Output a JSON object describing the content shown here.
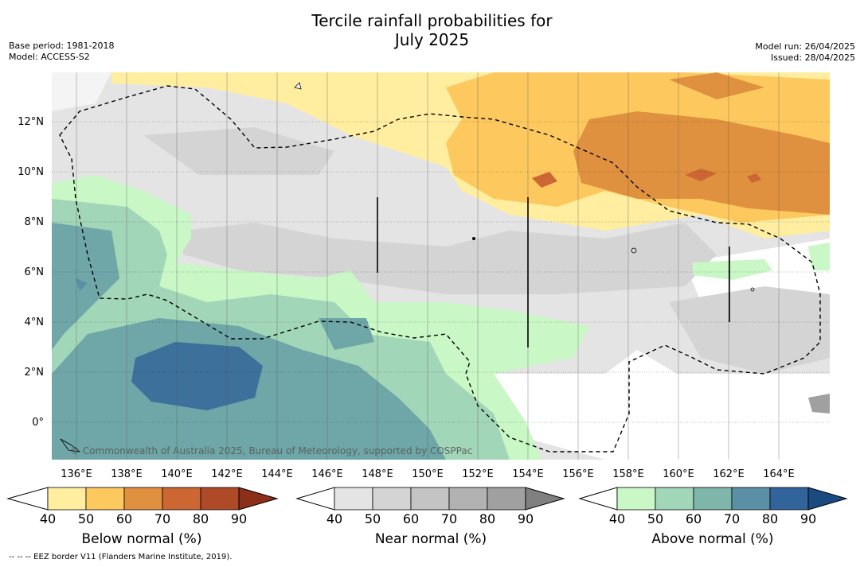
{
  "title_line1": "Tercile rainfall probabilities for",
  "title_line2": "July 2025",
  "base_period": "Base period: 1981-2018",
  "model": "Model: ACCESS-S2",
  "model_run": "Model run: 26/04/2025",
  "issued": "Issued: 28/04/2025",
  "lon_labels": [
    "136°E",
    "138°E",
    "140°E",
    "142°E",
    "144°E",
    "146°E",
    "148°E",
    "150°E",
    "152°E",
    "154°E",
    "156°E",
    "158°E",
    "160°E",
    "162°E",
    "164°E"
  ],
  "lat_labels": [
    "12°N",
    "10°N",
    "8°N",
    "6°N",
    "4°N",
    "2°N",
    "0°"
  ],
  "copyright": "© Commonwealth of Australia 2025, Bureau of Meteorology, supported by COSPPac",
  "colorbars": [
    {
      "label": "Below normal (%)",
      "ticks": [
        "40",
        "50",
        "60",
        "70",
        "80",
        "90"
      ],
      "colors": [
        "#ffeea0",
        "#fdc95f",
        "#e0913f",
        "#cc6633",
        "#ae4a28",
        "#8b2e1a"
      ]
    },
    {
      "label": "Near normal (%)",
      "ticks": [
        "40",
        "50",
        "60",
        "70",
        "80",
        "90"
      ],
      "colors": [
        "#e4e4e4",
        "#d4d4d4",
        "#c4c4c4",
        "#b2b2b2",
        "#a0a0a0",
        "#808080"
      ]
    },
    {
      "label": "Above normal (%)",
      "ticks": [
        "40",
        "50",
        "60",
        "70",
        "80",
        "90"
      ],
      "colors": [
        "#c9f7c6",
        "#a2d6b8",
        "#7fb6ac",
        "#5a8fa6",
        "#31649a",
        "#1a4a80"
      ]
    }
  ],
  "footer": "--  --  -- EEZ border V11 (Flanders Marine Institute, 2019)."
}
